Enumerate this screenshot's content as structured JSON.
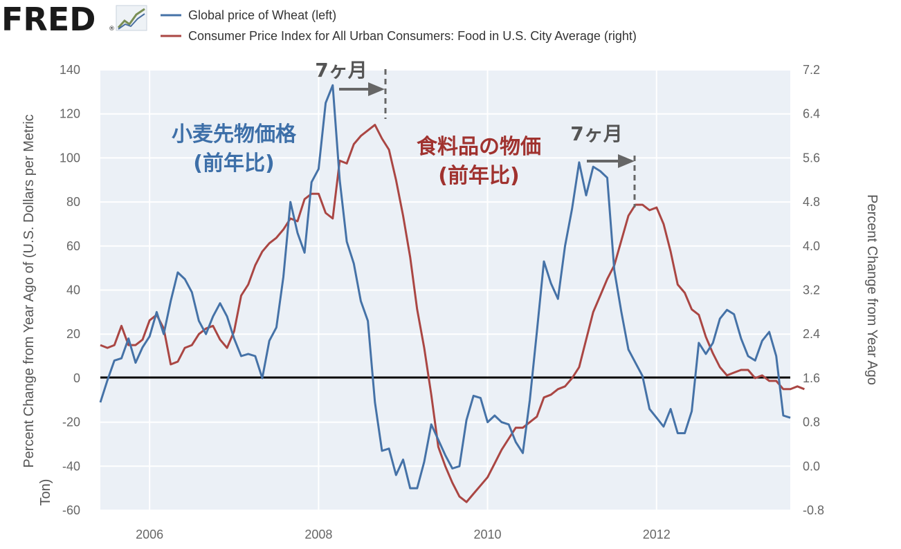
{
  "logo": {
    "text": "FRED",
    "registered": "®"
  },
  "legend": [
    {
      "label": "Global price of Wheat (left)",
      "color": "#4572a7"
    },
    {
      "label": "Consumer Price Index for All Urban Consumers: Food in U.S. City Average (right)",
      "color": "#aa4643"
    }
  ],
  "annotations": {
    "wheat_label_1": "小麦先物価格",
    "wheat_label_2": "(前年比)",
    "food_label_1": "食料品の物価",
    "food_label_2": "(前年比)",
    "lag_1": "7ヶ月",
    "lag_2": "7ヶ月"
  },
  "chart_data": {
    "type": "line",
    "ylabel_left": "Percent Change from Year Ago of (U.S. Dollars per Metric Ton)",
    "ylabel_right": "Percent Change from Year Ago",
    "x_ticks": [
      "2006",
      "2008",
      "2010",
      "2012"
    ],
    "y_left_ticks": [
      "140",
      "120",
      "100",
      "80",
      "60",
      "40",
      "20",
      "0",
      "-20",
      "-40",
      "-60"
    ],
    "y_right_ticks": [
      "7.2",
      "6.4",
      "5.6",
      "4.8",
      "4.0",
      "3.2",
      "2.4",
      "1.6",
      "0.8",
      "0.0",
      "-0.8"
    ],
    "xlim": [
      2005.417,
      2013.583
    ],
    "ylim_left": [
      -60,
      140
    ],
    "ylim_right": [
      -0.8,
      7.2
    ],
    "grid": true,
    "zero_line": 0,
    "series": [
      {
        "name": "Global price of Wheat (left)",
        "axis": "left",
        "color": "#4572a7",
        "x_start": 2005.417,
        "step_months": 1,
        "values": [
          -11,
          -1,
          8,
          9,
          18,
          7,
          14,
          19,
          30,
          20,
          35,
          48,
          45,
          39,
          26,
          20,
          28,
          34,
          28,
          18,
          10,
          11,
          10,
          0,
          17,
          23,
          46,
          80,
          66,
          57,
          89,
          95,
          125,
          133,
          90,
          62,
          52,
          35,
          26,
          -11,
          -33,
          -32,
          -44,
          -37,
          -50,
          -50,
          -38,
          -21,
          -28,
          -35,
          -41,
          -40,
          -19,
          -8,
          -9,
          -20,
          -17,
          -20,
          -21,
          -29,
          -34,
          -10,
          21,
          53,
          43,
          36,
          60,
          77,
          98,
          83,
          96,
          94,
          91,
          49,
          30,
          13,
          7,
          1,
          -14,
          -18,
          -22,
          -14,
          -25,
          -25,
          -15,
          16,
          11,
          16,
          27,
          31,
          29,
          18,
          10,
          8,
          17,
          21,
          10,
          -17,
          -18
        ]
      },
      {
        "name": "Consumer Price Index for All Urban Consumers: Food in U.S. City Average (right)",
        "axis": "right",
        "color": "#aa4643",
        "x_start": 2005.417,
        "step_months": 1,
        "values": [
          2.2,
          2.15,
          2.2,
          2.55,
          2.2,
          2.2,
          2.3,
          2.65,
          2.75,
          2.5,
          1.85,
          1.9,
          2.15,
          2.2,
          2.4,
          2.5,
          2.55,
          2.3,
          2.15,
          2.45,
          3.1,
          3.3,
          3.65,
          3.9,
          4.05,
          4.15,
          4.3,
          4.5,
          4.45,
          4.85,
          4.95,
          4.95,
          4.6,
          4.5,
          5.55,
          5.5,
          5.85,
          6.0,
          6.1,
          6.2,
          5.95,
          5.75,
          5.2,
          4.55,
          3.8,
          2.85,
          2.15,
          1.3,
          0.35,
          0.0,
          -0.3,
          -0.55,
          -0.65,
          -0.5,
          -0.35,
          -0.2,
          0.05,
          0.3,
          0.5,
          0.7,
          0.7,
          0.8,
          0.9,
          1.25,
          1.3,
          1.4,
          1.45,
          1.6,
          1.8,
          2.3,
          2.8,
          3.1,
          3.4,
          3.65,
          4.1,
          4.55,
          4.75,
          4.75,
          4.65,
          4.7,
          4.4,
          3.9,
          3.3,
          3.15,
          2.85,
          2.75,
          2.35,
          2.05,
          1.8,
          1.65,
          1.7,
          1.75,
          1.75,
          1.6,
          1.65,
          1.55,
          1.55,
          1.4,
          1.4,
          1.45,
          1.4
        ]
      }
    ]
  }
}
